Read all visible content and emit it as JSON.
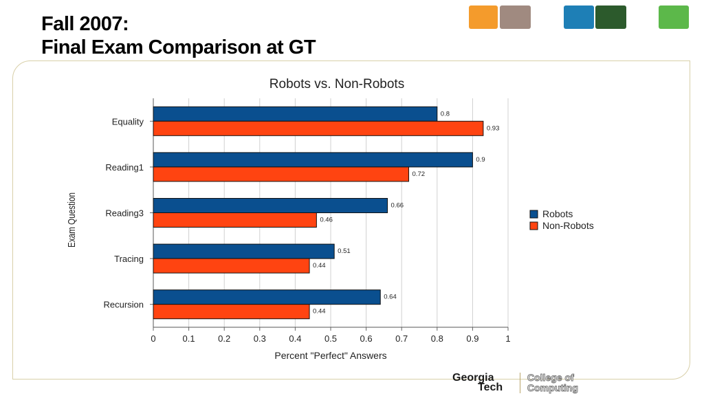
{
  "slide": {
    "title_line1": "Fall 2007:",
    "title_line2": "Final Exam Comparison at GT"
  },
  "thumbnails": [
    {
      "name": "orange-thumbnail",
      "color": "#f49b2c"
    },
    {
      "name": "campus-photo-thumbnail",
      "color": "#a08a80"
    },
    {
      "name": "blue-thumbnail",
      "color": "#1e7fb6"
    },
    {
      "name": "network-photo-thumbnail",
      "color": "#2c5a2c"
    },
    {
      "name": "green-thumbnail",
      "color": "#5cb84a"
    }
  ],
  "footer": {
    "org_line1": "Georgia",
    "org_line2": "Tech",
    "college_line1": "College of",
    "college_line2": "Computing"
  },
  "chart_data": {
    "type": "bar",
    "orientation": "horizontal",
    "title": "Robots vs. Non-Robots",
    "xlabel": "Percent \"Perfect\" Answers",
    "ylabel": "Exam Question",
    "categories": [
      "Equality",
      "Reading1",
      "Reading3",
      "Tracing",
      "Recursion"
    ],
    "series": [
      {
        "name": "Robots",
        "color": "#0a4f8f",
        "values": [
          0.8,
          0.9,
          0.66,
          0.51,
          0.64
        ],
        "labels": [
          "0.8",
          "0.9",
          "0.66",
          "0.51",
          "0.64"
        ]
      },
      {
        "name": "Non-Robots",
        "color": "#ff4411",
        "values": [
          0.93,
          0.72,
          0.46,
          0.44,
          0.44
        ],
        "labels": [
          "0.93",
          "0.72",
          "0.46",
          "0.44",
          "0.44"
        ]
      }
    ],
    "xlim": [
      0,
      1
    ],
    "xticks": [
      "0",
      "0.1",
      "0.2",
      "0.3",
      "0.4",
      "0.5",
      "0.6",
      "0.7",
      "0.8",
      "0.9",
      "1"
    ],
    "grid": true,
    "legend": "right"
  }
}
